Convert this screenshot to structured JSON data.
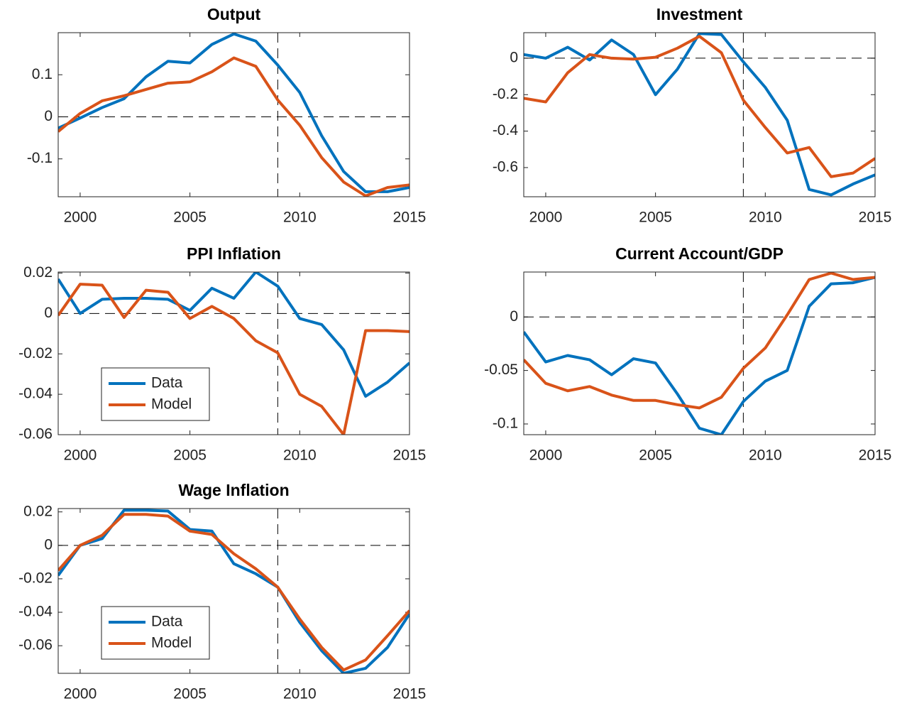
{
  "chart_data": [
    {
      "type": "line",
      "title": "Output",
      "x": [
        1999,
        2000,
        2001,
        2002,
        2003,
        2004,
        2005,
        2006,
        2007,
        2008,
        2009,
        2010,
        2011,
        2012,
        2013,
        2014,
        2015
      ],
      "xlim": [
        1999,
        2015
      ],
      "xticks": [
        2000,
        2005,
        2010,
        2015
      ],
      "ylim": [
        -0.19,
        0.2
      ],
      "yticks": [
        -0.1,
        0,
        0.1
      ],
      "hline": 0,
      "vline": 2009,
      "series": [
        {
          "name": "Data",
          "color": "#0072BD",
          "values": [
            -0.027,
            -0.003,
            0.022,
            0.043,
            0.095,
            0.132,
            0.128,
            0.172,
            0.197,
            0.18,
            0.123,
            0.058,
            -0.045,
            -0.13,
            -0.178,
            -0.178,
            -0.168
          ]
        },
        {
          "name": "Model",
          "color": "#D95319",
          "values": [
            -0.035,
            0.008,
            0.038,
            0.05,
            0.065,
            0.08,
            0.083,
            0.107,
            0.14,
            0.12,
            0.04,
            -0.02,
            -0.097,
            -0.155,
            -0.188,
            -0.168,
            -0.162
          ]
        }
      ]
    },
    {
      "type": "line",
      "title": "Investment",
      "x": [
        1999,
        2000,
        2001,
        2002,
        2003,
        2004,
        2005,
        2006,
        2007,
        2008,
        2009,
        2010,
        2011,
        2012,
        2013,
        2014,
        2015
      ],
      "xlim": [
        1999,
        2015
      ],
      "xticks": [
        2000,
        2005,
        2010,
        2015
      ],
      "ylim": [
        -0.76,
        0.14
      ],
      "yticks": [
        -0.6,
        -0.4,
        -0.2,
        0
      ],
      "hline": 0,
      "vline": 2009,
      "series": [
        {
          "name": "Data",
          "color": "#0072BD",
          "values": [
            0.02,
            0.0,
            0.06,
            -0.01,
            0.1,
            0.02,
            -0.2,
            -0.06,
            0.135,
            0.13,
            -0.02,
            -0.16,
            -0.34,
            -0.72,
            -0.75,
            -0.69,
            -0.64
          ]
        },
        {
          "name": "Model",
          "color": "#D95319",
          "values": [
            -0.22,
            -0.24,
            -0.08,
            0.02,
            0.0,
            -0.005,
            0.005,
            0.055,
            0.12,
            0.03,
            -0.23,
            -0.38,
            -0.52,
            -0.49,
            -0.65,
            -0.63,
            -0.55
          ]
        }
      ]
    },
    {
      "type": "line",
      "title": "PPI Inflation",
      "x": [
        1999,
        2000,
        2001,
        2002,
        2003,
        2004,
        2005,
        2006,
        2007,
        2008,
        2009,
        2010,
        2011,
        2012,
        2013,
        2014,
        2015
      ],
      "xlim": [
        1999,
        2015
      ],
      "xticks": [
        2000,
        2005,
        2010,
        2015
      ],
      "ylim": [
        -0.06,
        0.0205
      ],
      "yticks": [
        -0.06,
        -0.04,
        -0.02,
        0,
        0.02
      ],
      "hline": 0,
      "vline": 2009,
      "legend": "lower left",
      "series": [
        {
          "name": "Data",
          "color": "#0072BD",
          "values": [
            0.017,
            0.0,
            0.007,
            0.0075,
            0.0075,
            0.007,
            0.0015,
            0.0125,
            0.0075,
            0.0205,
            0.0135,
            -0.0025,
            -0.0055,
            -0.018,
            -0.041,
            -0.034,
            -0.0245
          ]
        },
        {
          "name": "Model",
          "color": "#D95319",
          "values": [
            -0.001,
            0.0145,
            0.014,
            -0.002,
            0.0115,
            0.0105,
            -0.0025,
            0.0035,
            -0.0025,
            -0.0135,
            -0.0195,
            -0.04,
            -0.046,
            -0.06,
            -0.0085,
            -0.0085,
            -0.009
          ]
        }
      ]
    },
    {
      "type": "line",
      "title": "Current Account/GDP",
      "x": [
        1999,
        2000,
        2001,
        2002,
        2003,
        2004,
        2005,
        2006,
        2007,
        2008,
        2009,
        2010,
        2011,
        2012,
        2013,
        2014,
        2015
      ],
      "xlim": [
        1999,
        2015
      ],
      "xticks": [
        2000,
        2005,
        2010,
        2015
      ],
      "ylim": [
        -0.11,
        0.042
      ],
      "yticks": [
        -0.1,
        -0.05,
        0
      ],
      "hline": 0,
      "vline": 2009,
      "series": [
        {
          "name": "Data",
          "color": "#0072BD",
          "values": [
            -0.014,
            -0.042,
            -0.036,
            -0.04,
            -0.054,
            -0.039,
            -0.043,
            -0.072,
            -0.104,
            -0.11,
            -0.079,
            -0.06,
            -0.05,
            0.01,
            0.031,
            0.032,
            0.037
          ]
        },
        {
          "name": "Model",
          "color": "#D95319",
          "values": [
            -0.04,
            -0.062,
            -0.069,
            -0.065,
            -0.073,
            -0.078,
            -0.078,
            -0.082,
            -0.085,
            -0.075,
            -0.048,
            -0.029,
            0.002,
            0.035,
            0.041,
            0.035,
            0.037
          ]
        }
      ]
    },
    {
      "type": "line",
      "title": "Wage Inflation",
      "x": [
        1999,
        2000,
        2001,
        2002,
        2003,
        2004,
        2005,
        2006,
        2007,
        2008,
        2009,
        2010,
        2011,
        2012,
        2013,
        2014,
        2015
      ],
      "xlim": [
        1999,
        2015
      ],
      "xticks": [
        2000,
        2005,
        2010,
        2015
      ],
      "ylim": [
        -0.0765,
        0.022
      ],
      "yticks": [
        -0.06,
        -0.04,
        -0.02,
        0,
        0.02
      ],
      "hline": 0,
      "vline": 2009,
      "legend": "lower left",
      "series": [
        {
          "name": "Data",
          "color": "#0072BD",
          "values": [
            -0.018,
            0.0,
            0.004,
            0.021,
            0.021,
            0.0205,
            0.0095,
            0.0085,
            -0.011,
            -0.017,
            -0.025,
            -0.046,
            -0.063,
            -0.0765,
            -0.0735,
            -0.061,
            -0.041
          ]
        },
        {
          "name": "Model",
          "color": "#D95319",
          "values": [
            -0.015,
            0.0,
            0.006,
            0.0185,
            0.0185,
            0.0175,
            0.0085,
            0.0065,
            -0.005,
            -0.014,
            -0.025,
            -0.044,
            -0.061,
            -0.0745,
            -0.0685,
            -0.054,
            -0.039
          ]
        }
      ]
    }
  ]
}
